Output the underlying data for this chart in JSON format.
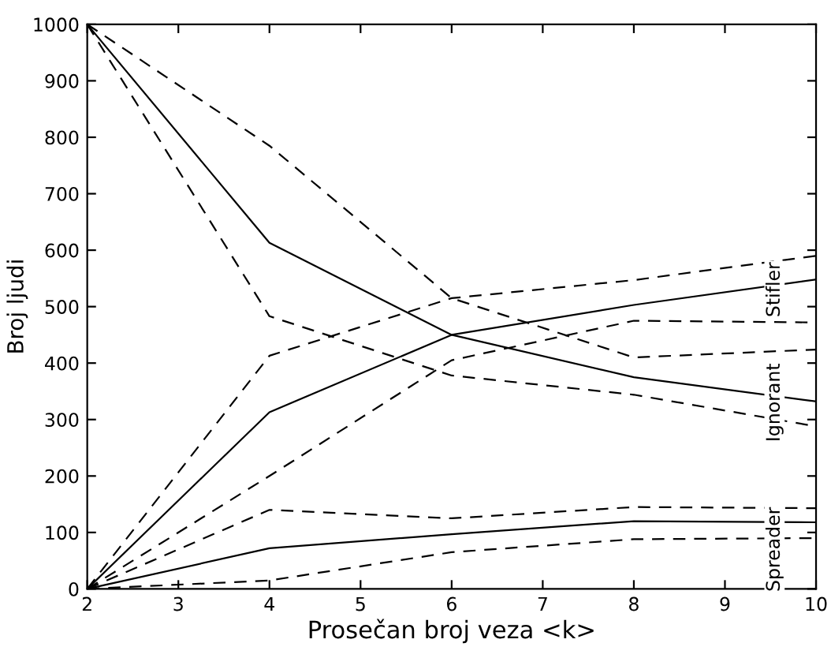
{
  "chart_data": {
    "type": "line",
    "xlabel": "Prosečan broj veza <k>",
    "ylabel": "Broj ljudi",
    "x": [
      2,
      4,
      6,
      8,
      10
    ],
    "series": [
      {
        "color": "#000000",
        "line_style": "solid",
        "values": [
          1000,
          613,
          450,
          375,
          332
        ]
      },
      {
        "color": "#000000",
        "line_style": "dashed",
        "values": [
          1000,
          785,
          515,
          410,
          424
        ]
      },
      {
        "color": "#000000",
        "line_style": "dashed",
        "values": [
          1000,
          483,
          378,
          344,
          288
        ]
      },
      {
        "color": "#000000",
        "line_style": "solid",
        "values": [
          0,
          313,
          450,
          503,
          548
        ]
      },
      {
        "color": "#000000",
        "line_style": "dashed",
        "values": [
          0,
          413,
          515,
          547,
          590
        ]
      },
      {
        "color": "#000000",
        "line_style": "dashed",
        "values": [
          0,
          200,
          405,
          475,
          472
        ]
      },
      {
        "color": "#000000",
        "line_style": "solid",
        "values": [
          0,
          72,
          97,
          120,
          118
        ]
      },
      {
        "color": "#000000",
        "line_style": "dashed",
        "values": [
          0,
          140,
          125,
          145,
          143
        ]
      },
      {
        "color": "#000000",
        "line_style": "dashed",
        "values": [
          0,
          15,
          65,
          88,
          90
        ]
      }
    ],
    "annotations": [
      "Stifler",
      "Ignorant",
      "Spreader"
    ],
    "xlim": [
      2,
      10
    ],
    "ylim": [
      0,
      1000
    ],
    "xticks": [
      2,
      3,
      4,
      5,
      6,
      7,
      8,
      9,
      10
    ],
    "yticks": [
      0,
      100,
      200,
      300,
      400,
      500,
      600,
      700,
      800,
      900,
      1000
    ],
    "grid": false,
    "marker": "none"
  }
}
